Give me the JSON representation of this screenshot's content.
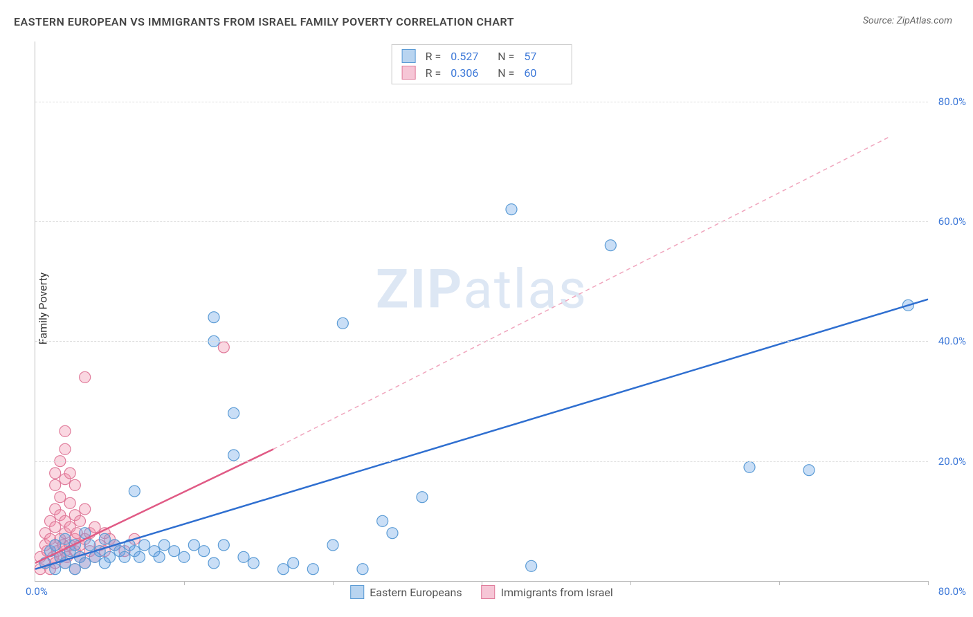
{
  "title": "EASTERN EUROPEAN VS IMMIGRANTS FROM ISRAEL FAMILY POVERTY CORRELATION CHART",
  "source_label": "Source: ZipAtlas.com",
  "watermark": {
    "bold": "ZIP",
    "rest": "atlas"
  },
  "ylabel": "Family Poverty",
  "chart": {
    "type": "scatter",
    "xlim": [
      0,
      90
    ],
    "ylim": [
      0,
      90
    ],
    "xticks_every": 15,
    "ytick_labels": [
      {
        "v": 20,
        "label": "20.0%"
      },
      {
        "v": 40,
        "label": "40.0%"
      },
      {
        "v": 60,
        "label": "60.0%"
      },
      {
        "v": 80,
        "label": "80.0%"
      }
    ],
    "x_origin_label": "0.0%",
    "x_end_label": "80.0%",
    "background_color": "#ffffff",
    "grid_color": "#dddddd",
    "axis_color": "#bbbbbb",
    "tick_label_color": "#3c78d8",
    "marker_radius": 8,
    "marker_stroke_width": 1.2,
    "trend_line_width": 2.5
  },
  "series": [
    {
      "key": "eastern_europeans",
      "label": "Eastern Europeans",
      "fill": "rgba(100,160,230,0.35)",
      "stroke": "#5a9bd5",
      "swatch_fill": "#b8d4f0",
      "swatch_stroke": "#5a9bd5",
      "R": "0.527",
      "N": "57",
      "trend": {
        "x1": 0,
        "y1": 2,
        "x2": 90,
        "y2": 47,
        "dash": null,
        "color": "#2f6fd0"
      },
      "points": [
        [
          1,
          3
        ],
        [
          1.5,
          5
        ],
        [
          2,
          2
        ],
        [
          2,
          6
        ],
        [
          2.5,
          4
        ],
        [
          3,
          3
        ],
        [
          3,
          7
        ],
        [
          3.5,
          5
        ],
        [
          4,
          2
        ],
        [
          4,
          6
        ],
        [
          4.5,
          4
        ],
        [
          5,
          3
        ],
        [
          5,
          8
        ],
        [
          5.5,
          6
        ],
        [
          6,
          4
        ],
        [
          6.5,
          5
        ],
        [
          7,
          3
        ],
        [
          7,
          7
        ],
        [
          7.5,
          4
        ],
        [
          8,
          6
        ],
        [
          8.5,
          5
        ],
        [
          9,
          4
        ],
        [
          9.5,
          6
        ],
        [
          10,
          5
        ],
        [
          10,
          15
        ],
        [
          10.5,
          4
        ],
        [
          11,
          6
        ],
        [
          12,
          5
        ],
        [
          12.5,
          4
        ],
        [
          13,
          6
        ],
        [
          14,
          5
        ],
        [
          15,
          4
        ],
        [
          16,
          6
        ],
        [
          17,
          5
        ],
        [
          18,
          3
        ],
        [
          18,
          44
        ],
        [
          18,
          40
        ],
        [
          19,
          6
        ],
        [
          20,
          28
        ],
        [
          20,
          21
        ],
        [
          21,
          4
        ],
        [
          22,
          3
        ],
        [
          25,
          2
        ],
        [
          26,
          3
        ],
        [
          28,
          2
        ],
        [
          30,
          6
        ],
        [
          31,
          43
        ],
        [
          33,
          2
        ],
        [
          35,
          10
        ],
        [
          36,
          8
        ],
        [
          39,
          14
        ],
        [
          48,
          62
        ],
        [
          50,
          2.5
        ],
        [
          58,
          56
        ],
        [
          72,
          19
        ],
        [
          78,
          18.5
        ],
        [
          88,
          46
        ]
      ]
    },
    {
      "key": "immigrants_israel",
      "label": "Immigrants from Israel",
      "fill": "rgba(240,140,170,0.35)",
      "stroke": "#e07a9a",
      "swatch_fill": "#f6c6d6",
      "swatch_stroke": "#e07a9a",
      "R": "0.306",
      "N": "60",
      "trend": {
        "x1": 0,
        "y1": 3,
        "x2": 24,
        "y2": 22,
        "dash": null,
        "color": "#e05a85"
      },
      "trend_ext": {
        "x1": 24,
        "y1": 22,
        "x2": 86,
        "y2": 74,
        "dash": "6,5",
        "color": "#f0a5bd"
      },
      "points": [
        [
          0.5,
          2
        ],
        [
          0.5,
          4
        ],
        [
          1,
          3
        ],
        [
          1,
          6
        ],
        [
          1,
          8
        ],
        [
          1.2,
          5
        ],
        [
          1.5,
          2
        ],
        [
          1.5,
          7
        ],
        [
          1.5,
          10
        ],
        [
          1.8,
          4
        ],
        [
          2,
          3
        ],
        [
          2,
          6
        ],
        [
          2,
          9
        ],
        [
          2,
          12
        ],
        [
          2,
          16
        ],
        [
          2,
          18
        ],
        [
          2.2,
          5
        ],
        [
          2.5,
          4
        ],
        [
          2.5,
          7
        ],
        [
          2.5,
          11
        ],
        [
          2.5,
          14
        ],
        [
          2.5,
          20
        ],
        [
          2.8,
          6
        ],
        [
          3,
          3
        ],
        [
          3,
          5
        ],
        [
          3,
          8
        ],
        [
          3,
          10
        ],
        [
          3,
          17
        ],
        [
          3,
          22
        ],
        [
          3,
          25
        ],
        [
          3.2,
          4
        ],
        [
          3.5,
          6
        ],
        [
          3.5,
          9
        ],
        [
          3.5,
          13
        ],
        [
          3.5,
          18
        ],
        [
          4,
          2
        ],
        [
          4,
          5
        ],
        [
          4,
          7
        ],
        [
          4,
          11
        ],
        [
          4,
          16
        ],
        [
          4.2,
          8
        ],
        [
          4.5,
          4
        ],
        [
          4.5,
          6
        ],
        [
          4.5,
          10
        ],
        [
          5,
          3
        ],
        [
          5,
          7
        ],
        [
          5,
          12
        ],
        [
          5,
          34
        ],
        [
          5.5,
          5
        ],
        [
          5.5,
          8
        ],
        [
          6,
          4
        ],
        [
          6,
          9
        ],
        [
          6.5,
          6
        ],
        [
          7,
          5
        ],
        [
          7,
          8
        ],
        [
          7.5,
          7
        ],
        [
          8,
          6
        ],
        [
          9,
          5
        ],
        [
          10,
          7
        ],
        [
          19,
          39
        ]
      ]
    }
  ],
  "legend_label_series1": "Eastern Europeans",
  "legend_label_series2": "Immigrants from Israel"
}
